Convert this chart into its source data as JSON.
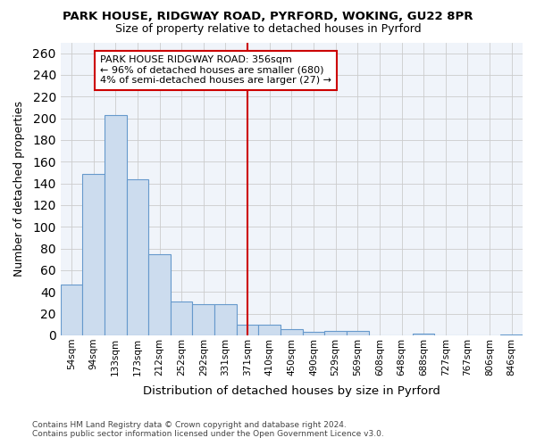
{
  "title1": "PARK HOUSE, RIDGWAY ROAD, PYRFORD, WOKING, GU22 8PR",
  "title2": "Size of property relative to detached houses in Pyrford",
  "xlabel": "Distribution of detached houses by size in Pyrford",
  "ylabel": "Number of detached properties",
  "footnote1": "Contains HM Land Registry data © Crown copyright and database right 2024.",
  "footnote2": "Contains public sector information licensed under the Open Government Licence v3.0.",
  "bar_labels": [
    "54sqm",
    "94sqm",
    "133sqm",
    "173sqm",
    "212sqm",
    "252sqm",
    "292sqm",
    "331sqm",
    "371sqm",
    "410sqm",
    "450sqm",
    "490sqm",
    "529sqm",
    "569sqm",
    "608sqm",
    "648sqm",
    "688sqm",
    "727sqm",
    "767sqm",
    "806sqm",
    "846sqm"
  ],
  "bar_values": [
    47,
    149,
    203,
    144,
    75,
    31,
    29,
    29,
    10,
    10,
    6,
    3,
    4,
    4,
    0,
    0,
    2,
    0,
    0,
    0,
    1
  ],
  "bar_color": "#ccdcee",
  "bar_edge_color": "#6699cc",
  "vline_x_index": 8,
  "vline_color": "#cc0000",
  "annotation_title": "PARK HOUSE RIDGWAY ROAD: 356sqm",
  "annotation_line1": "← 96% of detached houses are smaller (680)",
  "annotation_line2": "4% of semi-detached houses are larger (27) →",
  "annotation_box_color": "#ffffff",
  "annotation_box_edge": "#cc0000",
  "ylim": [
    0,
    270
  ],
  "yticks": [
    0,
    20,
    40,
    60,
    80,
    100,
    120,
    140,
    160,
    180,
    200,
    220,
    240,
    260
  ],
  "bg_color": "#ffffff",
  "plot_bg": "#f0f4fa",
  "grid_color": "#cccccc"
}
